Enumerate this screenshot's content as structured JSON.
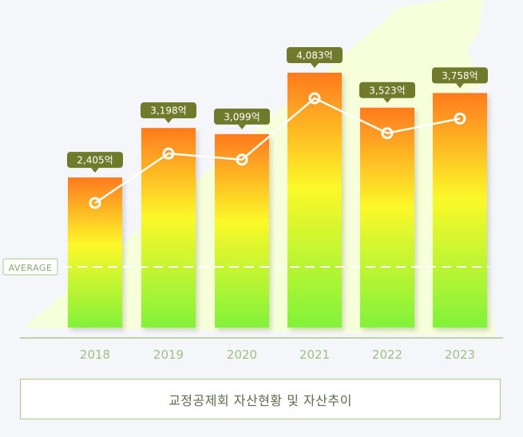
{
  "chart_data": {
    "type": "bar",
    "categories": [
      "2018",
      "2019",
      "2020",
      "2021",
      "2022",
      "2023"
    ],
    "values": [
      2405,
      3198,
      3099,
      4083,
      3523,
      3758
    ],
    "value_labels": [
      "2,405억",
      "3,198억",
      "3,099억",
      "4,083억",
      "3,523억",
      "3,758억"
    ],
    "line_overlay": true,
    "average_label": "AVERAGE",
    "caption": "교정공제회 자산현황 및 자산추이",
    "colors": {
      "bar_top": "#ff7a1e",
      "bar_mid": "#fcf82a",
      "bar_bottom": "#82f23a",
      "label_bg": "#6f7a2b",
      "line": "#ffffff",
      "axis": "#a9c98a",
      "tick_text": "#9fbf82",
      "arrow": "#f6ffd6"
    }
  }
}
